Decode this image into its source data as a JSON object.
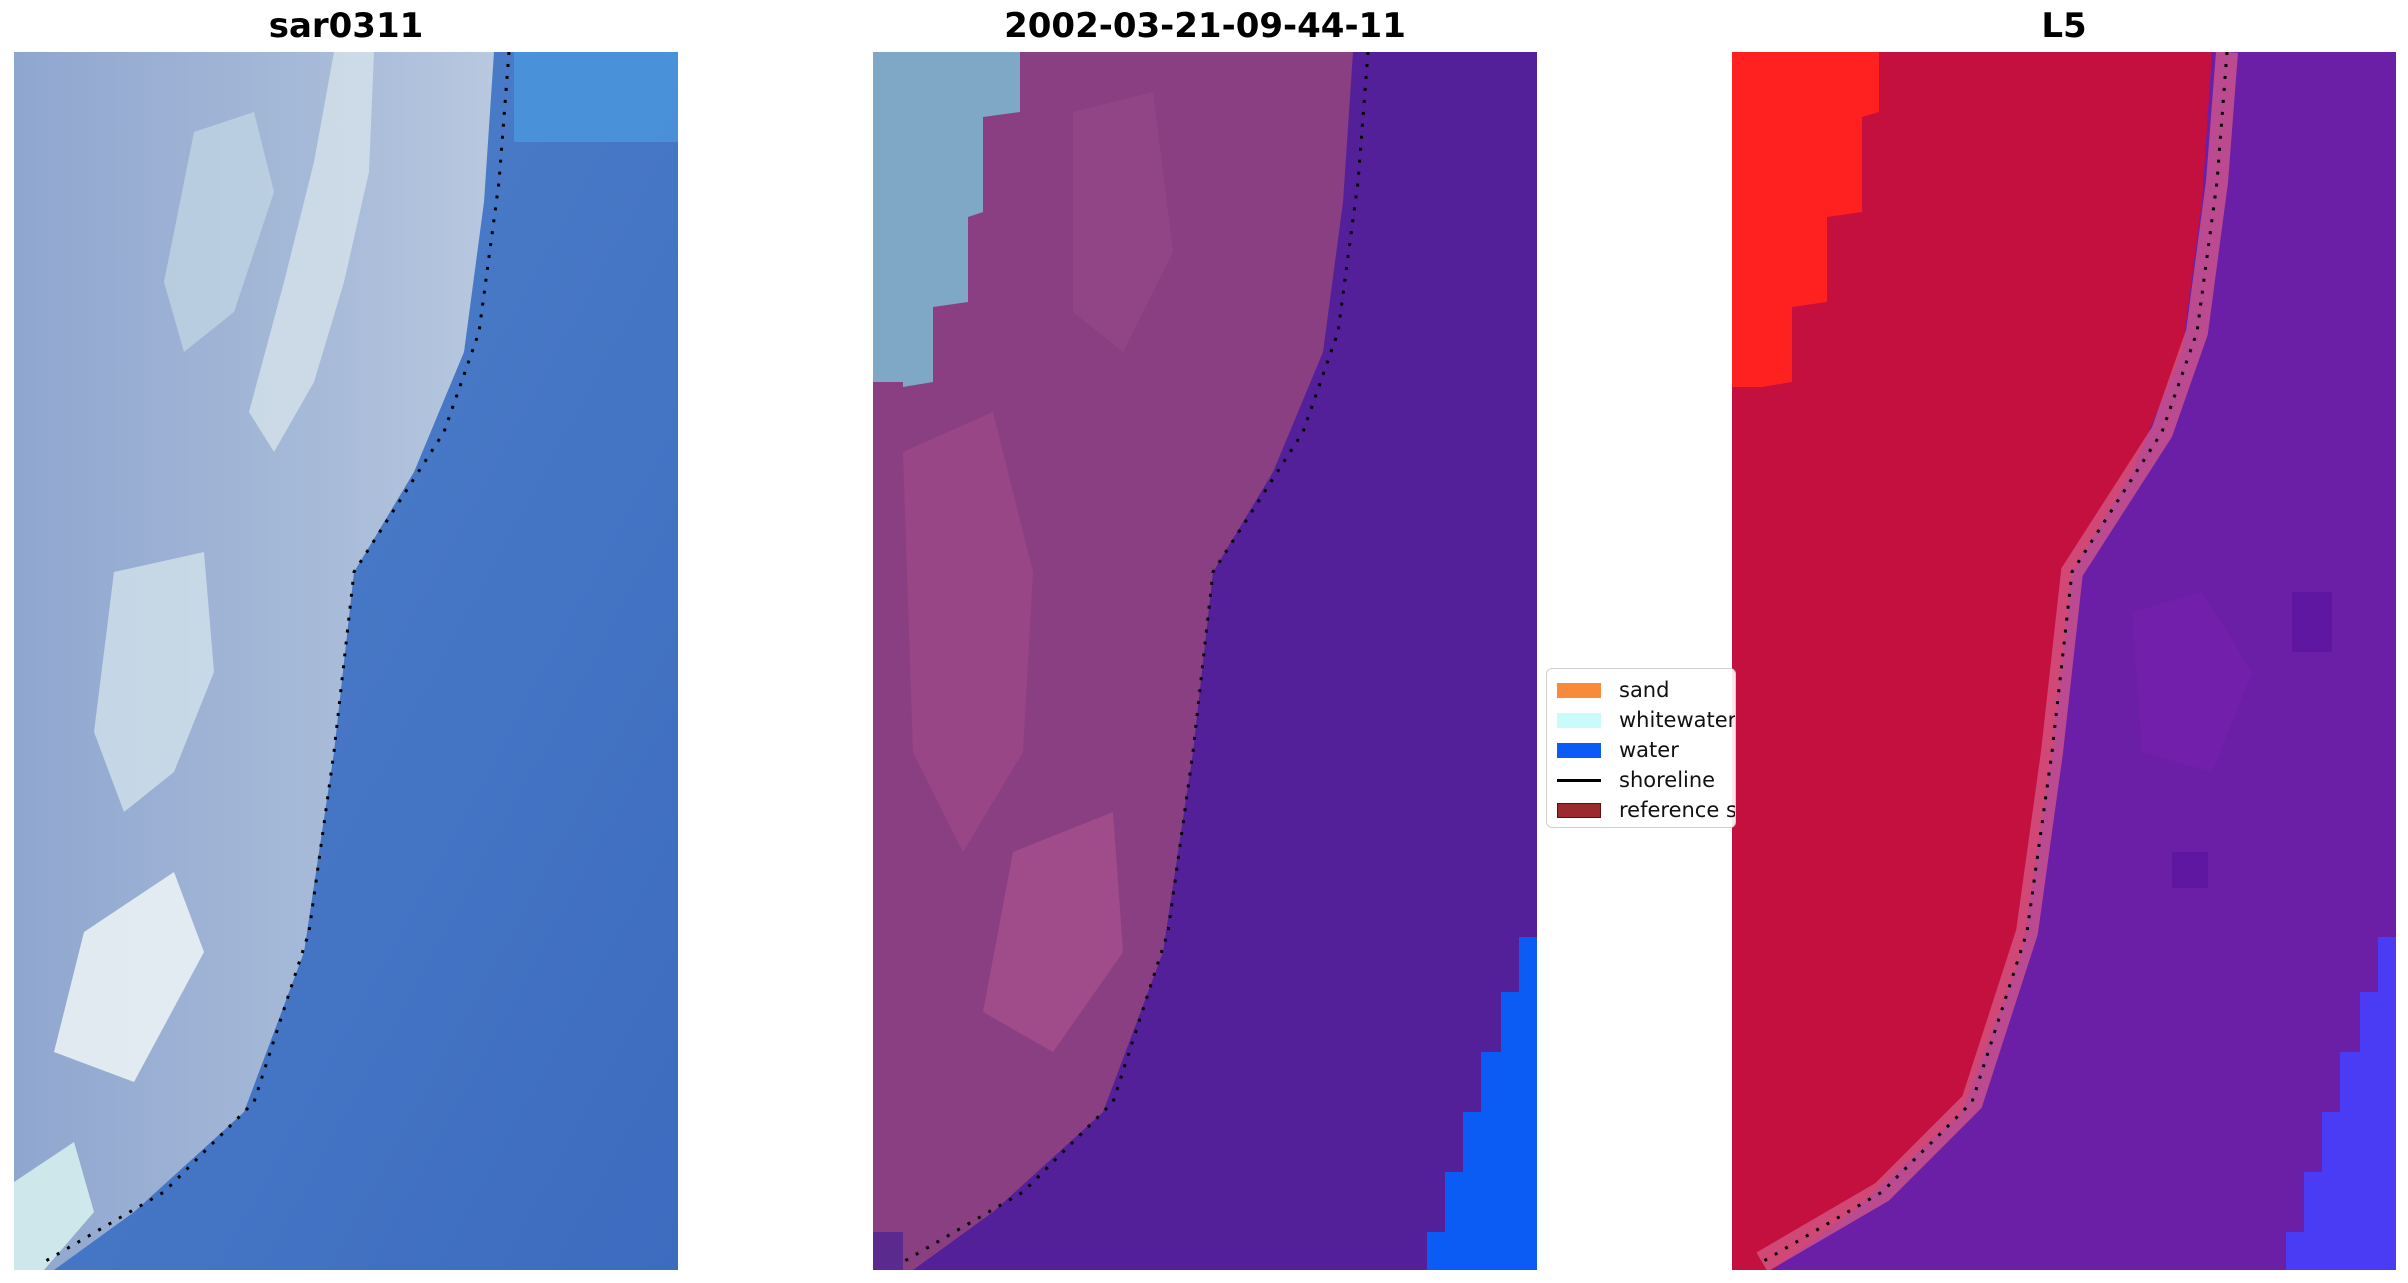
{
  "panels": {
    "left": {
      "title": "sar0311"
    },
    "middle": {
      "title": "2002-03-21-09-44-11"
    },
    "right": {
      "title": "L5"
    }
  },
  "legend": {
    "items": [
      {
        "label": "sand",
        "color": "#f98a3a",
        "kind": "patch"
      },
      {
        "label": "whitewater",
        "color": "#c9fbfa",
        "kind": "patch"
      },
      {
        "label": "water",
        "color": "#0a5cf5",
        "kind": "patch"
      },
      {
        "label": "shoreline",
        "color": "#000000",
        "kind": "line"
      },
      {
        "label": "reference s",
        "color": "#9a2a2e",
        "kind": "patch"
      }
    ]
  },
  "colors": {
    "rgb_land": "#9fb3d4",
    "rgb_sea": "#3f70c1",
    "class_land": "#8a3f82",
    "class_land_light": "#7fa7c6",
    "class_sea": "#54209a",
    "class_water": "#0a5cf5",
    "mwi_land": "#c4103e",
    "mwi_land_bright": "#ff2020",
    "mwi_sea": "#6b1fa6",
    "mwi_water": "#4a3cf5"
  }
}
